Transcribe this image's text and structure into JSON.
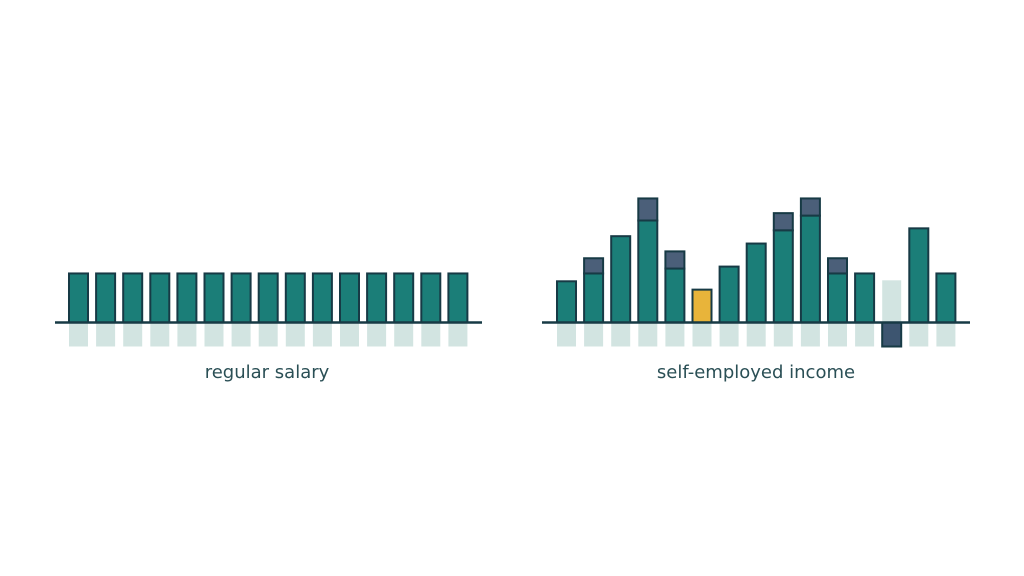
{
  "chart_data": [
    {
      "type": "bar",
      "xlabel": "regular salary",
      "ylim": [
        -50,
        260
      ],
      "outline": "#173a45",
      "reflection_color": "#d2e4e1",
      "series": [
        {
          "color": "#1b7e78",
          "values": [
            100,
            100,
            100,
            100,
            100,
            100,
            100,
            100,
            100,
            100,
            100,
            100,
            100,
            100,
            100
          ]
        }
      ]
    },
    {
      "type": "bar",
      "xlabel": "self-employed income",
      "ylim": [
        -50,
        260
      ],
      "outline": "#173a45",
      "reflection_color": "#d2e4e1",
      "series": [
        {
          "color": "#1b7e78",
          "colors": [
            "#1b7e78",
            "#1b7e78",
            "#1b7e78",
            "#1b7e78",
            "#1b7e78",
            "#e8b43a",
            "#1b7e78",
            "#1b7e78",
            "#1b7e78",
            "#1b7e78",
            "#1b7e78",
            "#1b7e78",
            "#d2e4e1",
            "#1b7e78",
            "#1b7e78"
          ],
          "values": [
            84,
            100,
            176,
            208,
            110,
            67,
            114,
            161,
            188,
            218,
            100,
            100,
            86,
            192,
            100
          ]
        },
        {
          "color": "#4b5f79",
          "values": [
            null,
            31,
            null,
            45,
            35,
            null,
            null,
            null,
            35,
            35,
            31,
            null,
            null,
            null,
            null
          ]
        },
        {
          "color": "#3d5570",
          "values": [
            null,
            null,
            null,
            null,
            null,
            null,
            null,
            null,
            null,
            null,
            null,
            null,
            -49,
            null,
            null
          ]
        }
      ]
    }
  ]
}
